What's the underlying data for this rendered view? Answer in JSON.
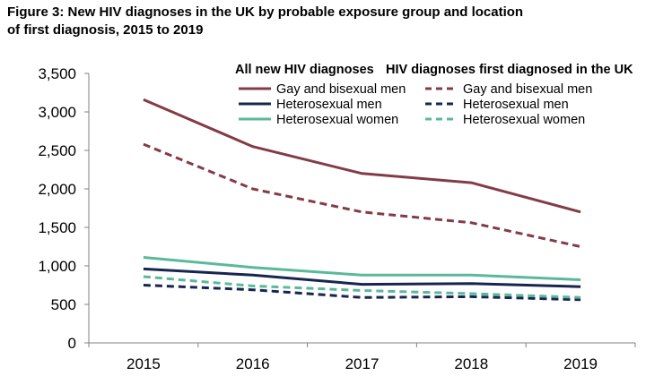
{
  "figure": {
    "title_line1": "Figure 3: New HIV diagnoses in the UK by probable exposure group and location",
    "title_line2": "of first diagnosis, 2015 to 2019"
  },
  "chart_data": {
    "type": "line",
    "title": "Figure 3: New HIV diagnoses in the UK by probable exposure group and location of first diagnosis, 2015 to 2019",
    "xlabel": "",
    "ylabel": "",
    "x": [
      "2015",
      "2016",
      "2017",
      "2018",
      "2019"
    ],
    "ylim": [
      0,
      3500
    ],
    "yticks": [
      "0",
      "500",
      "1,000",
      "1,500",
      "2,000",
      "2,500",
      "3,000",
      "3,500"
    ],
    "grid": false,
    "legend_placement": "top",
    "legend_groups": [
      "All new HIV diagnoses",
      "HIV diagnoses first diagnosed in the UK"
    ],
    "series": [
      {
        "name": "Gay and bisexual men",
        "group": 0,
        "color": "#833C47",
        "dash": "solid",
        "values": [
          3160,
          2550,
          2200,
          2080,
          1700
        ]
      },
      {
        "name": "Heterosexual men",
        "group": 0,
        "color": "#16264F",
        "dash": "solid",
        "values": [
          960,
          880,
          760,
          770,
          730
        ]
      },
      {
        "name": "Heterosexual women",
        "group": 0,
        "color": "#5BB89B",
        "dash": "solid",
        "values": [
          1110,
          980,
          880,
          880,
          820
        ]
      },
      {
        "name": "Gay and bisexual men",
        "group": 1,
        "color": "#833C47",
        "dash": "dashed",
        "values": [
          2580,
          2000,
          1700,
          1560,
          1250
        ]
      },
      {
        "name": "Heterosexual men",
        "group": 1,
        "color": "#16264F",
        "dash": "dashed",
        "values": [
          750,
          690,
          590,
          600,
          560
        ]
      },
      {
        "name": "Heterosexual women",
        "group": 1,
        "color": "#5BB89B",
        "dash": "dashed",
        "values": [
          860,
          740,
          680,
          640,
          590
        ]
      }
    ]
  }
}
